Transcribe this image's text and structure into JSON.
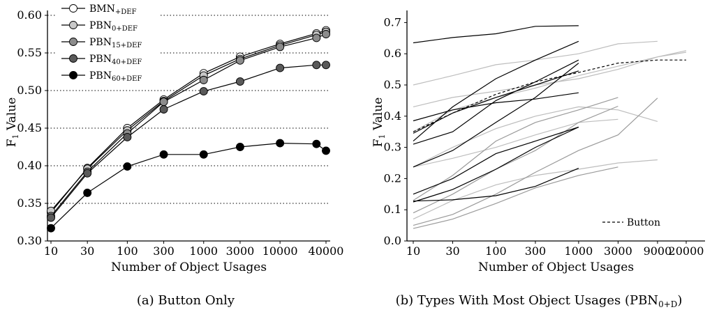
{
  "chart_data": [
    {
      "type": "line",
      "caption": "(a) Button Only",
      "xlabel": "Number of Object Usages",
      "ylabel": "F1 Value",
      "x_tick_labels": [
        "10",
        "30",
        "100",
        "300",
        "1000",
        "3000",
        "10000",
        "40000"
      ],
      "y_ticks": [
        0.3,
        0.35,
        0.4,
        0.45,
        0.5,
        0.55,
        0.6
      ],
      "y_tick_labels": [
        "0.30",
        "0.35",
        "0.40",
        "0.45",
        "0.50",
        "0.55",
        "0.60"
      ],
      "ylim": [
        0.3,
        0.6
      ],
      "x_scale": "log",
      "grid": "horizontal dotted",
      "legend_position": "top-left",
      "x": [
        10,
        30,
        100,
        300,
        1000,
        3000,
        10000,
        30000,
        40000
      ],
      "series": [
        {
          "name": "BMN+DEF",
          "base": "BMN",
          "sub": "+DEF",
          "marker_fill": "#ffffff",
          "values": [
            0.338,
            0.397,
            0.45,
            0.488,
            0.523,
            0.545,
            0.562,
            0.576,
            0.58
          ]
        },
        {
          "name": "PBN0+DEF",
          "base": "PBN",
          "sub": "0+DEF",
          "marker_fill": "#c8c8c8",
          "values": [
            0.34,
            0.396,
            0.447,
            0.486,
            0.52,
            0.542,
            0.56,
            0.574,
            0.578
          ]
        },
        {
          "name": "PBN15+DEF",
          "base": "PBN",
          "sub": "15+DEF",
          "marker_fill": "#8c8c8c",
          "values": [
            0.333,
            0.392,
            0.443,
            0.485,
            0.514,
            0.54,
            0.558,
            0.57,
            0.575
          ]
        },
        {
          "name": "PBN40+DEF",
          "base": "PBN",
          "sub": "40+DEF",
          "marker_fill": "#5a5a5a",
          "values": [
            0.331,
            0.39,
            0.438,
            0.475,
            0.499,
            0.512,
            0.53,
            0.534,
            0.534
          ]
        },
        {
          "name": "PBN60+DEF",
          "base": "PBN",
          "sub": "60+DEF",
          "marker_fill": "#000000",
          "values": [
            0.317,
            0.364,
            0.399,
            0.415,
            0.415,
            0.425,
            0.43,
            0.429,
            0.42
          ]
        }
      ]
    },
    {
      "type": "line",
      "caption": "(b) Types With Most Object Usages (PBN",
      "caption_sub": "0+D",
      "caption_end": ")",
      "xlabel": "Number of Object Usages",
      "ylabel": "F1 Value",
      "x_tick_labels": [
        "10",
        "30",
        "100",
        "300",
        "1000",
        "3000",
        "9000",
        "20000"
      ],
      "y_ticks": [
        0.0,
        0.1,
        0.2,
        0.3,
        0.4,
        0.5,
        0.6,
        0.7
      ],
      "y_tick_labels": [
        "0.0",
        "0.1",
        "0.2",
        "0.3",
        "0.4",
        "0.5",
        "0.6",
        "0.7"
      ],
      "ylim": [
        0.0,
        0.75
      ],
      "x_scale": "log",
      "legend_position": "bottom-right",
      "button_series": {
        "name": "Button",
        "x": [
          10,
          30,
          100,
          300,
          1000,
          3000,
          9000,
          20000
        ],
        "values": [
          0.35,
          0.41,
          0.47,
          0.51,
          0.54,
          0.57,
          0.58,
          0.58
        ]
      },
      "series": [
        {
          "color": "#000000",
          "x": [
            10,
            30,
            100,
            300,
            1000
          ],
          "values": [
            0.635,
            0.652,
            0.664,
            0.688,
            0.69
          ]
        },
        {
          "color": "#000000",
          "x": [
            10,
            30,
            100,
            300,
            1000
          ],
          "values": [
            0.385,
            0.42,
            0.443,
            0.455,
            0.475
          ]
        },
        {
          "color": "#000000",
          "x": [
            10,
            30,
            100,
            300,
            1000
          ],
          "values": [
            0.345,
            0.41,
            0.46,
            0.5,
            0.545
          ]
        },
        {
          "color": "#000000",
          "x": [
            10,
            30,
            100,
            300,
            1000
          ],
          "values": [
            0.32,
            0.43,
            0.52,
            0.58,
            0.64
          ]
        },
        {
          "color": "#000000",
          "x": [
            10,
            30,
            100,
            300,
            1000
          ],
          "values": [
            0.31,
            0.35,
            0.45,
            0.51,
            0.58
          ]
        },
        {
          "color": "#000000",
          "x": [
            10,
            30,
            100,
            300,
            1000
          ],
          "values": [
            0.237,
            0.29,
            0.38,
            0.46,
            0.57
          ]
        },
        {
          "color": "#000000",
          "x": [
            10,
            30,
            100,
            300,
            1000
          ],
          "values": [
            0.15,
            0.2,
            0.28,
            0.32,
            0.365
          ]
        },
        {
          "color": "#000000",
          "x": [
            10,
            30,
            100,
            300,
            1000
          ],
          "values": [
            0.125,
            0.165,
            0.23,
            0.3,
            0.365
          ]
        },
        {
          "color": "#000000",
          "x": [
            10,
            30,
            100,
            300,
            1000
          ],
          "values": [
            0.128,
            0.132,
            0.145,
            0.175,
            0.233
          ]
        },
        {
          "color": "#bdbdbd",
          "x": [
            10,
            30,
            100,
            300,
            1000,
            3000,
            9000
          ],
          "values": [
            0.5,
            0.53,
            0.565,
            0.58,
            0.6,
            0.632,
            0.64
          ]
        },
        {
          "color": "#bdbdbd",
          "x": [
            10,
            30,
            100,
            300,
            1000,
            3000,
            9000,
            20000
          ],
          "values": [
            0.35,
            0.42,
            0.46,
            0.49,
            0.53,
            0.56,
            0.59,
            0.61
          ]
        },
        {
          "color": "#bdbdbd",
          "x": [
            10,
            30,
            100,
            300,
            1000,
            3000,
            9000,
            20000
          ],
          "values": [
            0.43,
            0.46,
            0.48,
            0.5,
            0.52,
            0.55,
            0.59,
            0.605
          ]
        },
        {
          "color": "#bdbdbd",
          "x": [
            10,
            30,
            100,
            300,
            1000,
            3000,
            9000
          ],
          "values": [
            0.237,
            0.3,
            0.36,
            0.4,
            0.43,
            0.42,
            0.383
          ]
        },
        {
          "color": "#bdbdbd",
          "x": [
            10,
            30,
            100,
            300,
            1000,
            3000
          ],
          "values": [
            0.237,
            0.265,
            0.3,
            0.34,
            0.38,
            0.39
          ]
        },
        {
          "color": "#bdbdbd",
          "x": [
            10,
            30,
            100,
            300,
            1000,
            3000,
            9000
          ],
          "values": [
            0.07,
            0.13,
            0.18,
            0.21,
            0.23,
            0.25,
            0.26
          ]
        },
        {
          "color": "#9a9a9a",
          "x": [
            10,
            30,
            100,
            300,
            1000,
            3000
          ],
          "values": [
            0.13,
            0.21,
            0.32,
            0.38,
            0.42,
            0.46
          ]
        },
        {
          "color": "#9a9a9a",
          "x": [
            10,
            30,
            100,
            300,
            1000,
            3000
          ],
          "values": [
            0.09,
            0.15,
            0.23,
            0.29,
            0.38,
            0.432
          ]
        },
        {
          "color": "#9a9a9a",
          "x": [
            10,
            30,
            100,
            300,
            1000,
            3000,
            9000
          ],
          "values": [
            0.05,
            0.085,
            0.15,
            0.22,
            0.29,
            0.34,
            0.458
          ]
        },
        {
          "color": "#9a9a9a",
          "x": [
            10,
            30,
            100,
            300,
            1000,
            3000
          ],
          "values": [
            0.04,
            0.07,
            0.12,
            0.17,
            0.21,
            0.237
          ]
        }
      ]
    }
  ]
}
